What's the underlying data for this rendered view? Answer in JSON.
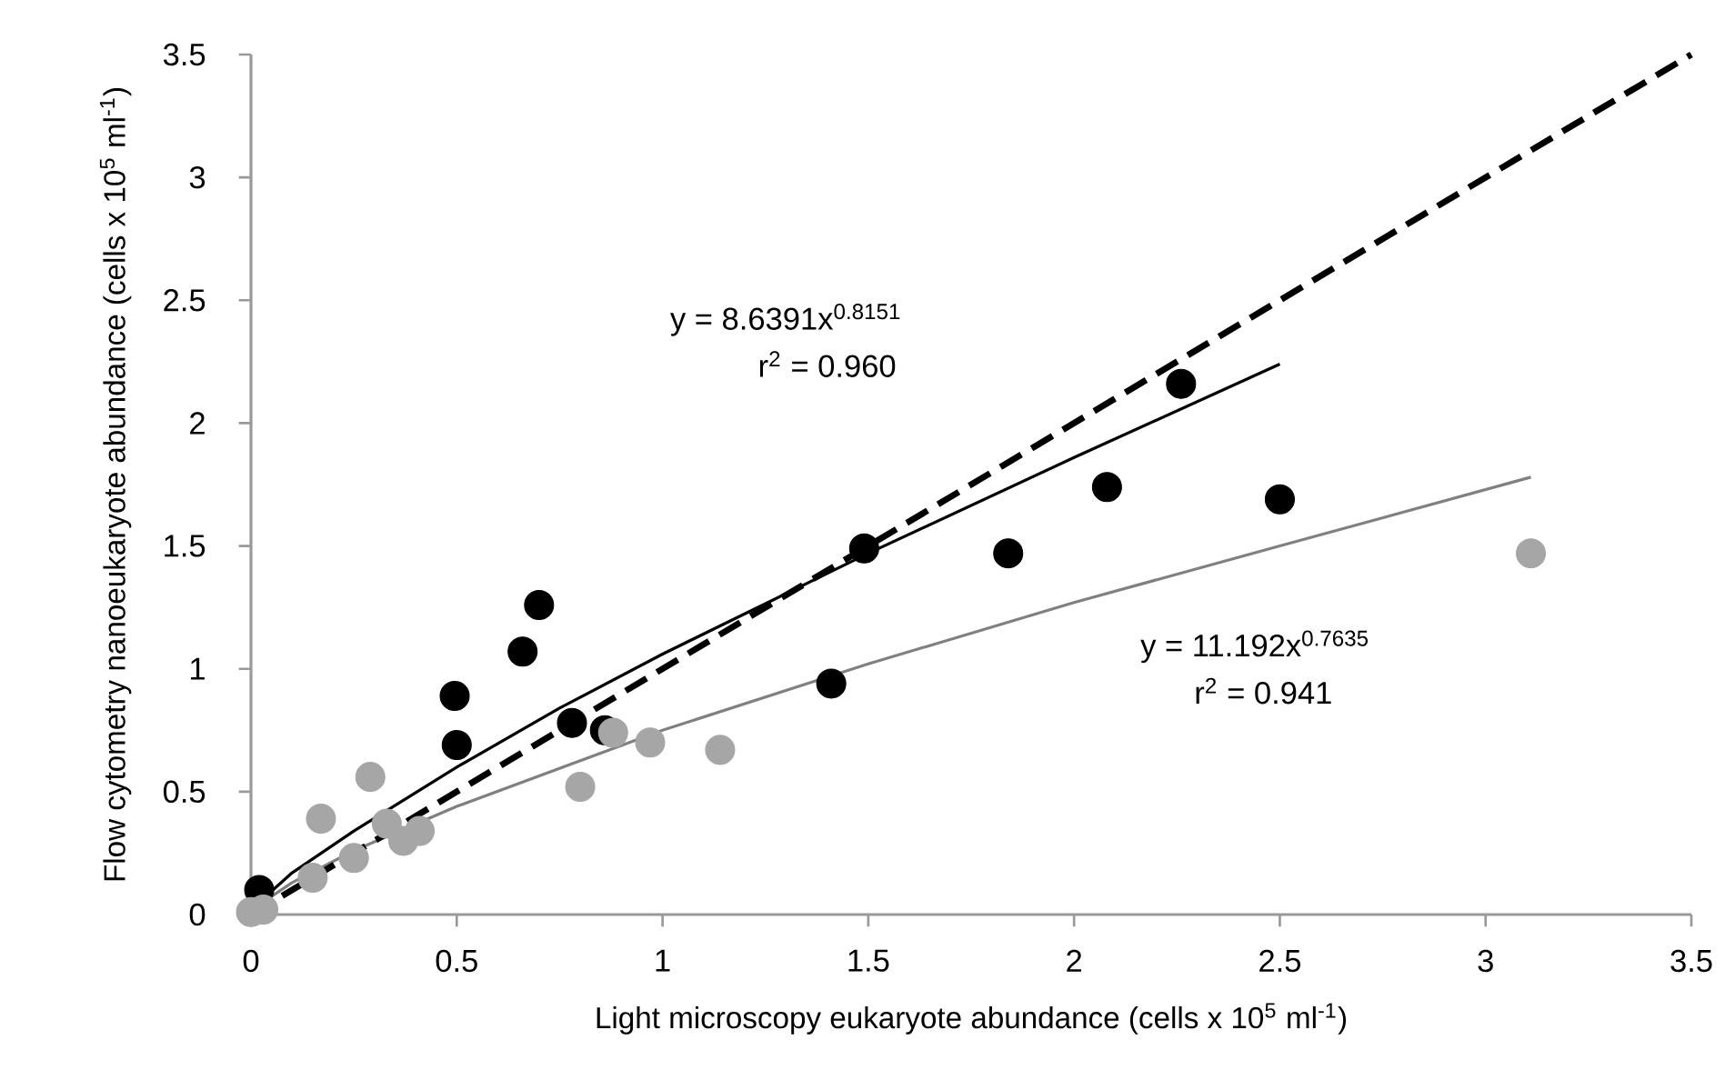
{
  "chart_data": {
    "type": "scatter",
    "xlabel": "Light microscopy eukaryote abundance (cells x 10$^{5}$ ml$^{-1}$)",
    "ylabel": "Flow cytometry nanoeukaryote abundance (cells x 10$^{5}$ ml$^{-1}$)",
    "marker": "circle",
    "xlim": [
      0,
      3.5
    ],
    "ylim": [
      0,
      3.5
    ],
    "xticks": [
      0,
      0.5,
      1,
      1.5,
      2,
      2.5,
      3,
      3.5
    ],
    "yticks": [
      0,
      0.5,
      1,
      1.5,
      2,
      2.5,
      3,
      3.5
    ],
    "annotations": [
      "y = 8.6391x$^{0.8151}$",
      "r$^{2}$ = 0.960",
      "y = 11.192x$^{0.7635}$",
      "r$^{2}$ = 0.941"
    ],
    "series": [
      {
        "color": "#000000",
        "x": [
          0.02,
          0.495,
          0.5,
          0.66,
          0.7,
          0.78,
          0.86,
          1.41,
          1.49,
          1.84,
          2.08,
          2.26,
          2.5
        ],
        "values": [
          0.1,
          0.89,
          0.69,
          1.07,
          1.26,
          0.78,
          0.75,
          0.94,
          1.49,
          1.47,
          1.74,
          2.16,
          1.69
        ]
      },
      {
        "color": "#a6a6a6",
        "x": [
          0.0,
          0.03,
          0.15,
          0.17,
          0.25,
          0.29,
          0.33,
          0.37,
          0.41,
          0.8,
          0.88,
          0.97,
          1.14,
          3.11
        ],
        "values": [
          0.01,
          0.02,
          0.15,
          0.39,
          0.23,
          0.56,
          0.37,
          0.3,
          0.34,
          0.52,
          0.74,
          0.7,
          0.67,
          1.47
        ]
      },
      {
        "type": "line",
        "color": "#000000",
        "marker": "none",
        "line_style": "solid",
        "x": [
          0.02,
          0.1,
          0.25,
          0.5,
          0.75,
          1,
          1.5,
          2,
          2.5
        ],
        "values": [
          0.05,
          0.17,
          0.34,
          0.6,
          0.84,
          1.06,
          1.47,
          1.86,
          2.24
        ]
      },
      {
        "type": "line",
        "color": "#808080",
        "marker": "none",
        "line_style": "solid",
        "x": [
          0.02,
          0.1,
          0.25,
          0.5,
          1,
          1.5,
          2,
          2.5,
          3.11
        ],
        "values": [
          0.04,
          0.13,
          0.26,
          0.44,
          0.75,
          1.02,
          1.27,
          1.5,
          1.78
        ]
      },
      {
        "type": "line",
        "color": "#000000",
        "marker": "none",
        "line_style": "dashed",
        "x": [
          0,
          3.5
        ],
        "values": [
          0,
          3.5
        ]
      }
    ]
  }
}
